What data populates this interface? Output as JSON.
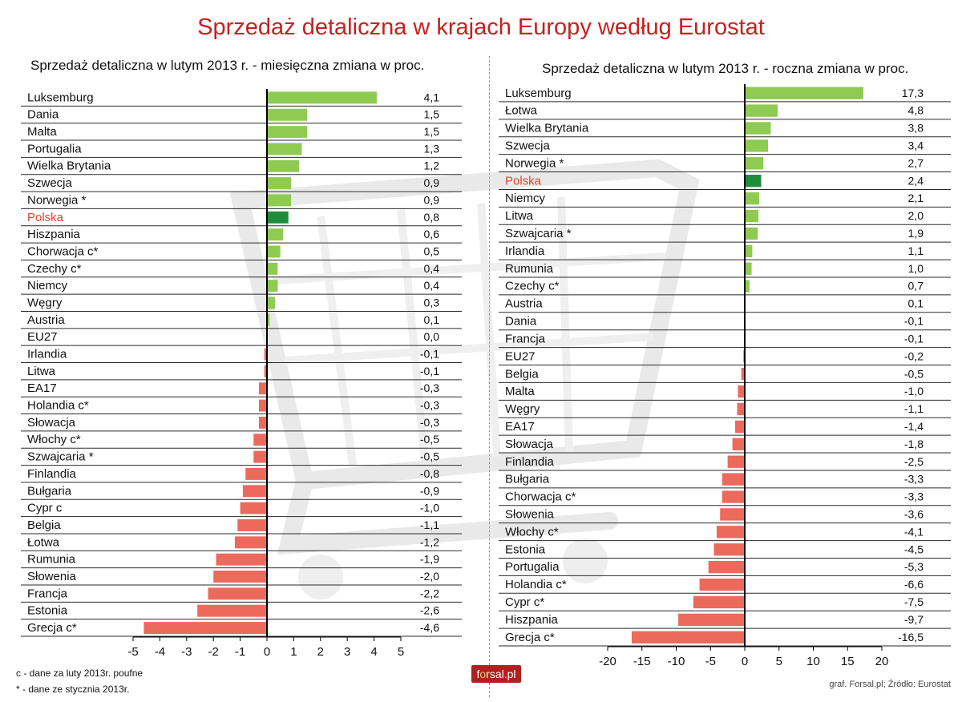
{
  "title": "Sprzedaż detaliczna w krajach Europy według Eurostat",
  "footnotes": [
    "c - dane za luty 2013r. poufne",
    "* - dane ze stycznia 2013r."
  ],
  "credit": "graf. Forsal.pl; Źródło: Eurostat",
  "logo": {
    "pre": "f",
    "mid": "o",
    "post": "rsal.pl"
  },
  "colors": {
    "positive": "#8fca52",
    "negative": "#ec6a5c",
    "highlight": "#1f8c3b",
    "highlight_label": "#e0452a",
    "title": "#c8201e"
  },
  "chart_data": [
    {
      "type": "bar",
      "orientation": "horizontal",
      "title": "Sprzedaż detaliczna w lutym 2013 r. - miesięczna zmiana w proc.",
      "highlight": "Polska",
      "xlim": [
        -5,
        5
      ],
      "xticks": [
        "-5",
        "-4",
        "-3",
        "-2",
        "-1",
        "0",
        "1",
        "2",
        "3",
        "4",
        "5"
      ],
      "grid": false,
      "rows": [
        {
          "label": "Luksemburg",
          "value": 4.1,
          "display": "4,1"
        },
        {
          "label": "Dania",
          "value": 1.5,
          "display": "1,5"
        },
        {
          "label": "Malta",
          "value": 1.5,
          "display": "1,5"
        },
        {
          "label": "Portugalia",
          "value": 1.3,
          "display": "1,3"
        },
        {
          "label": "Wielka Brytania",
          "value": 1.2,
          "display": "1,2"
        },
        {
          "label": "Szwecja",
          "value": 0.9,
          "display": "0,9"
        },
        {
          "label": "Norwegia *",
          "value": 0.9,
          "display": "0,9"
        },
        {
          "label": "Polska",
          "value": 0.8,
          "display": "0,8"
        },
        {
          "label": "Hiszpania",
          "value": 0.6,
          "display": "0,6"
        },
        {
          "label": "Chorwacja c*",
          "value": 0.5,
          "display": "0,5"
        },
        {
          "label": "Czechy c*",
          "value": 0.4,
          "display": "0,4"
        },
        {
          "label": "Niemcy",
          "value": 0.4,
          "display": "0,4"
        },
        {
          "label": "Węgry",
          "value": 0.3,
          "display": "0,3"
        },
        {
          "label": "Austria",
          "value": 0.1,
          "display": "0,1"
        },
        {
          "label": "EU27",
          "value": 0.0,
          "display": "0,0"
        },
        {
          "label": "Irlandia",
          "value": -0.1,
          "display": "-0,1"
        },
        {
          "label": "Litwa",
          "value": -0.1,
          "display": "-0,1"
        },
        {
          "label": "EA17",
          "value": -0.3,
          "display": "-0,3"
        },
        {
          "label": "Holandia c*",
          "value": -0.3,
          "display": "-0,3"
        },
        {
          "label": "Słowacja",
          "value": -0.3,
          "display": "-0,3"
        },
        {
          "label": "Włochy c*",
          "value": -0.5,
          "display": "-0,5"
        },
        {
          "label": "Szwajcaria *",
          "value": -0.5,
          "display": "-0,5"
        },
        {
          "label": "Finlandia",
          "value": -0.8,
          "display": "-0,8"
        },
        {
          "label": "Bułgaria",
          "value": -0.9,
          "display": "-0,9"
        },
        {
          "label": "Cypr c",
          "value": -1.0,
          "display": "-1,0"
        },
        {
          "label": "Belgia",
          "value": -1.1,
          "display": "-1,1"
        },
        {
          "label": "Łotwa",
          "value": -1.2,
          "display": "-1,2"
        },
        {
          "label": "Rumunia",
          "value": -1.9,
          "display": "-1,9"
        },
        {
          "label": "Słowenia",
          "value": -2.0,
          "display": "-2,0"
        },
        {
          "label": "Francja",
          "value": -2.2,
          "display": "-2,2"
        },
        {
          "label": "Estonia",
          "value": -2.6,
          "display": "-2,6"
        },
        {
          "label": "Grecja c*",
          "value": -4.6,
          "display": "-4,6"
        }
      ]
    },
    {
      "type": "bar",
      "orientation": "horizontal",
      "title": "Sprzedaż detaliczna w lutym 2013 r. - roczna zmiana w proc.",
      "highlight": "Polska",
      "xlim": [
        -20,
        20
      ],
      "xticks": [
        "-20",
        "-15",
        "-10",
        "-5",
        "0",
        "5",
        "10",
        "15",
        "20"
      ],
      "grid": false,
      "rows": [
        {
          "label": "Luksemburg",
          "value": 17.3,
          "display": "17,3"
        },
        {
          "label": "Łotwa",
          "value": 4.8,
          "display": "4,8"
        },
        {
          "label": "Wielka Brytania",
          "value": 3.8,
          "display": "3,8"
        },
        {
          "label": "Szwecja",
          "value": 3.4,
          "display": "3,4"
        },
        {
          "label": "Norwegia *",
          "value": 2.7,
          "display": "2,7"
        },
        {
          "label": "Polska",
          "value": 2.4,
          "display": "2,4"
        },
        {
          "label": "Niemcy",
          "value": 2.1,
          "display": "2,1"
        },
        {
          "label": "Litwa",
          "value": 2.0,
          "display": "2,0"
        },
        {
          "label": "Szwajcaria *",
          "value": 1.9,
          "display": "1,9"
        },
        {
          "label": "Irlandia",
          "value": 1.1,
          "display": "1,1"
        },
        {
          "label": "Rumunia",
          "value": 1.0,
          "display": "1,0"
        },
        {
          "label": "Czechy c*",
          "value": 0.7,
          "display": "0,7"
        },
        {
          "label": "Austria",
          "value": 0.1,
          "display": "0,1"
        },
        {
          "label": "Dania",
          "value": -0.1,
          "display": "-0,1"
        },
        {
          "label": "Francja",
          "value": -0.1,
          "display": "-0,1"
        },
        {
          "label": "EU27",
          "value": -0.2,
          "display": "-0,2"
        },
        {
          "label": "Belgia",
          "value": -0.5,
          "display": "-0,5"
        },
        {
          "label": "Malta",
          "value": -1.0,
          "display": "-1,0"
        },
        {
          "label": "Węgry",
          "value": -1.1,
          "display": "-1,1"
        },
        {
          "label": "EA17",
          "value": -1.4,
          "display": "-1,4"
        },
        {
          "label": "Słowacja",
          "value": -1.8,
          "display": "-1,8"
        },
        {
          "label": "Finlandia",
          "value": -2.5,
          "display": "-2,5"
        },
        {
          "label": "Bułgaria",
          "value": -3.3,
          "display": "-3,3"
        },
        {
          "label": "Chorwacja c*",
          "value": -3.3,
          "display": "-3,3"
        },
        {
          "label": "Słowenia",
          "value": -3.6,
          "display": "-3,6"
        },
        {
          "label": "Włochy c*",
          "value": -4.1,
          "display": "-4,1"
        },
        {
          "label": "Estonia",
          "value": -4.5,
          "display": "-4,5"
        },
        {
          "label": "Portugalia",
          "value": -5.3,
          "display": "-5,3"
        },
        {
          "label": "Holandia c*",
          "value": -6.6,
          "display": "-6,6"
        },
        {
          "label": "Cypr c*",
          "value": -7.5,
          "display": "-7,5"
        },
        {
          "label": "Hiszpania",
          "value": -9.7,
          "display": "-9,7"
        },
        {
          "label": "Grecja c*",
          "value": -16.5,
          "display": "-16,5"
        }
      ]
    }
  ]
}
